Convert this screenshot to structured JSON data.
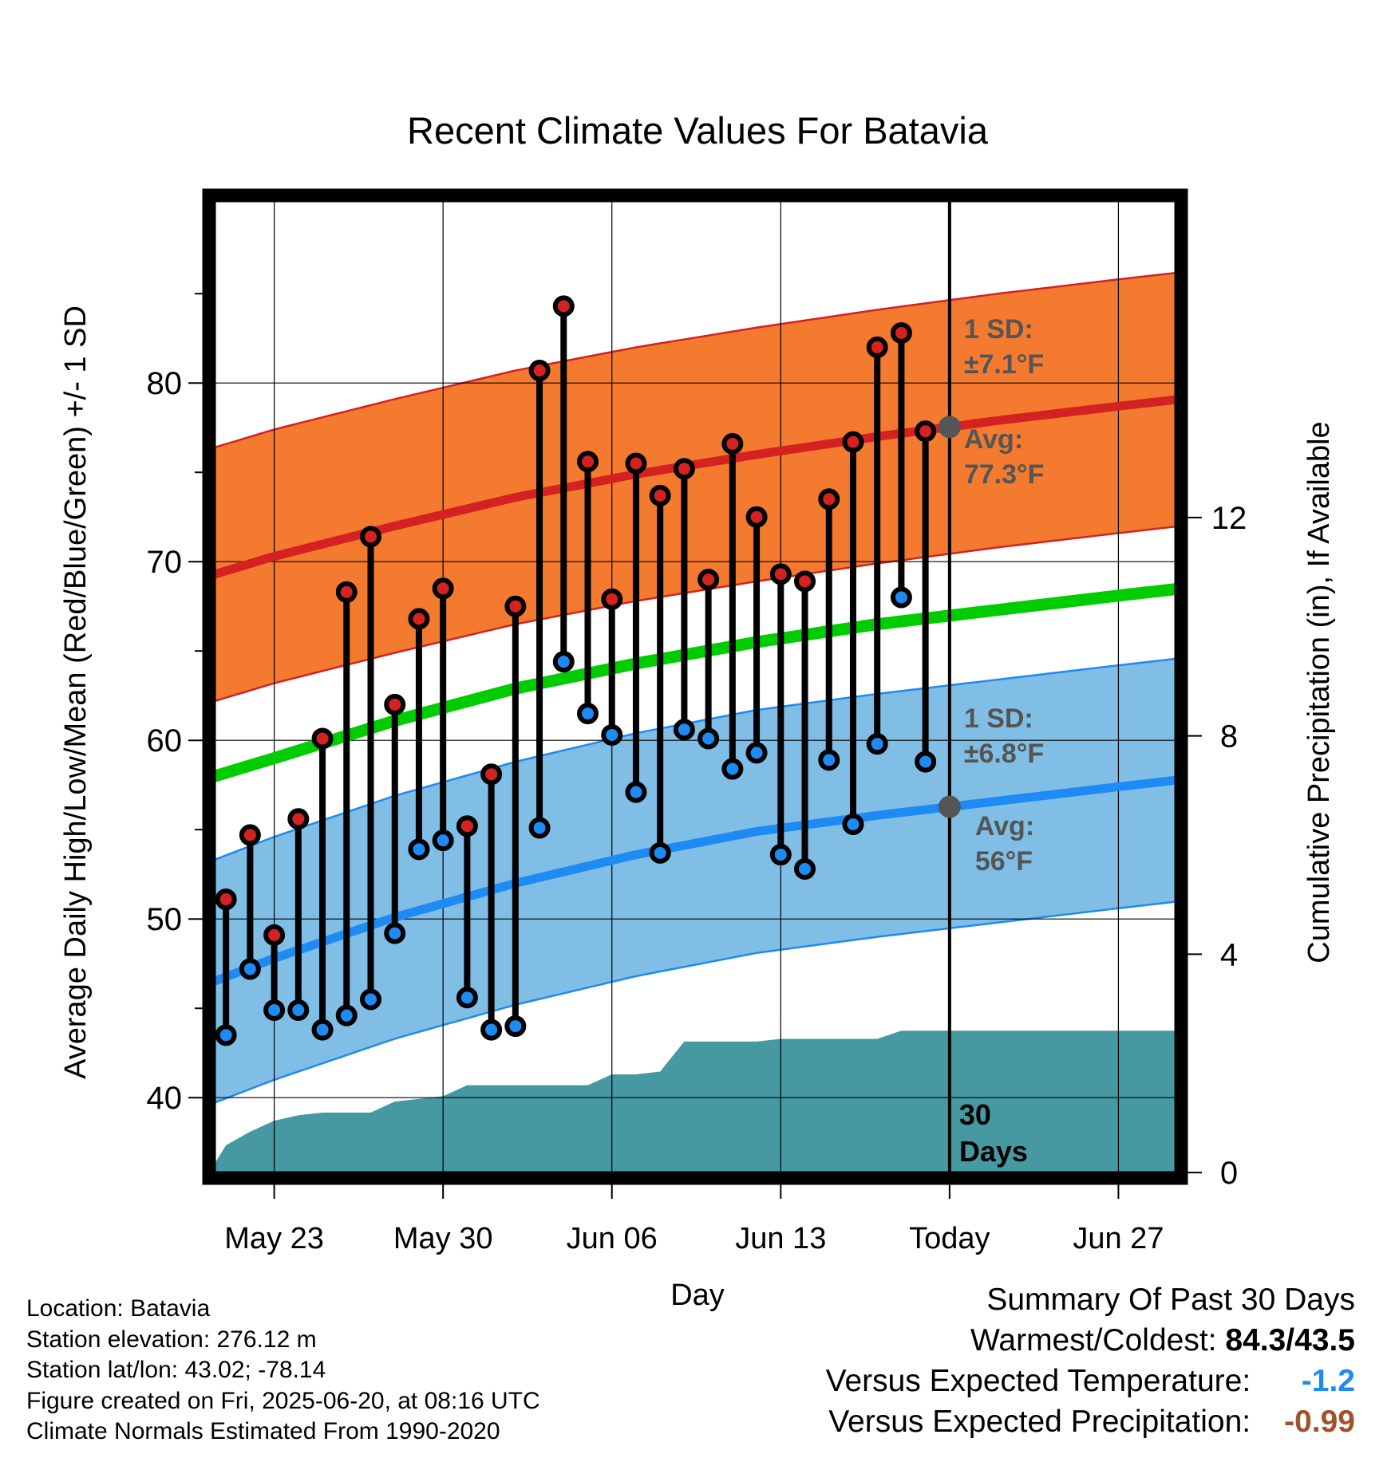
{
  "chart_data": {
    "type": "line",
    "title": "Recent Climate Values For Batavia",
    "xlabel": "Day",
    "ylabel": "Average Daily High/Low/Mean (Red/Blue/Green) +/- 1 SD",
    "y2label": "Cumulative Precipitation (in), If Available",
    "ylim": [
      35.5,
      90.5
    ],
    "y2lim": [
      -0.1,
      17.9
    ],
    "yticks": [
      "40",
      "50",
      "60",
      "70",
      "80"
    ],
    "y2ticks": [
      "0",
      "4",
      "8",
      "12"
    ],
    "xtick_labels": [
      "May 23",
      "May 30",
      "Jun 06",
      "Jun 13",
      "Today",
      "Jun 27"
    ],
    "xtick_days": [
      0,
      7,
      14,
      21,
      28,
      35
    ],
    "xlim": [
      -2.7,
      37.6
    ],
    "grid": true,
    "days": [
      -2,
      -1,
      0,
      1,
      2,
      3,
      4,
      5,
      6,
      7,
      8,
      9,
      10,
      11,
      12,
      13,
      14,
      15,
      16,
      17,
      18,
      19,
      20,
      21,
      22,
      23,
      24,
      25,
      26,
      27
    ],
    "daily_high": [
      51.1,
      54.7,
      49.1,
      55.6,
      60.1,
      68.3,
      71.4,
      62.0,
      66.8,
      68.5,
      55.2,
      58.1,
      67.5,
      80.7,
      84.3,
      75.6,
      67.9,
      75.5,
      73.7,
      75.2,
      69.0,
      76.6,
      72.5,
      69.3,
      68.9,
      73.5,
      76.7,
      82.0,
      82.8,
      77.3
    ],
    "daily_low": [
      43.5,
      47.2,
      44.9,
      44.9,
      43.8,
      44.6,
      45.5,
      49.2,
      53.9,
      54.4,
      45.6,
      43.8,
      44.0,
      55.1,
      64.4,
      61.5,
      60.3,
      57.1,
      53.7,
      60.6,
      60.1,
      58.4,
      59.3,
      53.6,
      52.8,
      58.9,
      55.3,
      59.8,
      68.0,
      58.8
    ],
    "series": [
      {
        "name": "Normal High",
        "color": "#d42222",
        "x": [
          -2.7,
          0,
          5,
          10,
          15,
          20,
          25,
          30,
          35,
          37.6
        ],
        "values": [
          69.2,
          70.3,
          72.0,
          73.6,
          74.9,
          76.0,
          77.0,
          77.9,
          78.7,
          79.1
        ]
      },
      {
        "name": "Normal Low",
        "color": "#1e8af4",
        "x": [
          -2.7,
          0,
          5,
          10,
          15,
          20,
          25,
          30,
          35,
          37.6
        ],
        "values": [
          46.4,
          47.8,
          50.1,
          52.0,
          53.6,
          54.9,
          55.8,
          56.6,
          57.4,
          57.8
        ]
      },
      {
        "name": "Normal Mean",
        "color": "#00cc00",
        "x": [
          -2.7,
          0,
          5,
          10,
          15,
          20,
          25,
          30,
          35,
          37.6
        ],
        "values": [
          57.9,
          59.0,
          61.1,
          62.9,
          64.3,
          65.5,
          66.5,
          67.3,
          68.1,
          68.5
        ]
      }
    ],
    "high_sd": 7.1,
    "low_sd": 6.8,
    "precip_x": [
      -2.7,
      -2,
      -1,
      0,
      1,
      2,
      3,
      4,
      5,
      6,
      7,
      8,
      9,
      10,
      11,
      12,
      13,
      14,
      15,
      16,
      17,
      18,
      19,
      20,
      21,
      22,
      23,
      24,
      25,
      26,
      27,
      28,
      37.6
    ],
    "precip_cum": [
      0.0,
      0.5,
      0.75,
      0.95,
      1.05,
      1.1,
      1.1,
      1.1,
      1.3,
      1.35,
      1.4,
      1.6,
      1.6,
      1.6,
      1.6,
      1.6,
      1.6,
      1.8,
      1.8,
      1.85,
      2.4,
      2.4,
      2.4,
      2.4,
      2.45,
      2.45,
      2.45,
      2.45,
      2.45,
      2.6,
      2.6,
      2.6,
      2.6
    ],
    "annotations": {
      "high_sd_line1": "1 SD:",
      "high_sd_line2": "±7.1°F",
      "high_avg_line1": "Avg:",
      "high_avg_line2": "77.3°F",
      "low_sd_line1": "1 SD:",
      "low_sd_line2": "±6.8°F",
      "low_avg_line1": "Avg:",
      "low_avg_line2": "56°F",
      "days_line1": "30",
      "days_line2": "Days"
    },
    "colors": {
      "high_band": "#f47a2f",
      "high_band_edge": "#d42222",
      "low_band": "#80bee5",
      "low_band_edge": "#1e8af4",
      "precip": "#4699a1",
      "annotation": "#555555"
    }
  },
  "footer": {
    "location": "Location: Batavia",
    "elevation": "Station elevation: 276.12 m",
    "latlon": "Station lat/lon: 43.02; -78.14",
    "created": "Figure created on Fri, 2025-06-20, at 08:16 UTC",
    "normals": "Climate Normals Estimated From 1990-2020"
  },
  "summary": {
    "title": "Summary Of Past 30 Days",
    "warm_cold_label": "Warmest/Coldest:",
    "warm_cold_value": "84.3/43.5",
    "temp_label": "Versus Expected Temperature:",
    "temp_value": "-1.2",
    "temp_color": "#1e8af4",
    "precip_label": "Versus Expected Precipitation:",
    "precip_value": "-0.99",
    "precip_color": "#a0522d"
  }
}
